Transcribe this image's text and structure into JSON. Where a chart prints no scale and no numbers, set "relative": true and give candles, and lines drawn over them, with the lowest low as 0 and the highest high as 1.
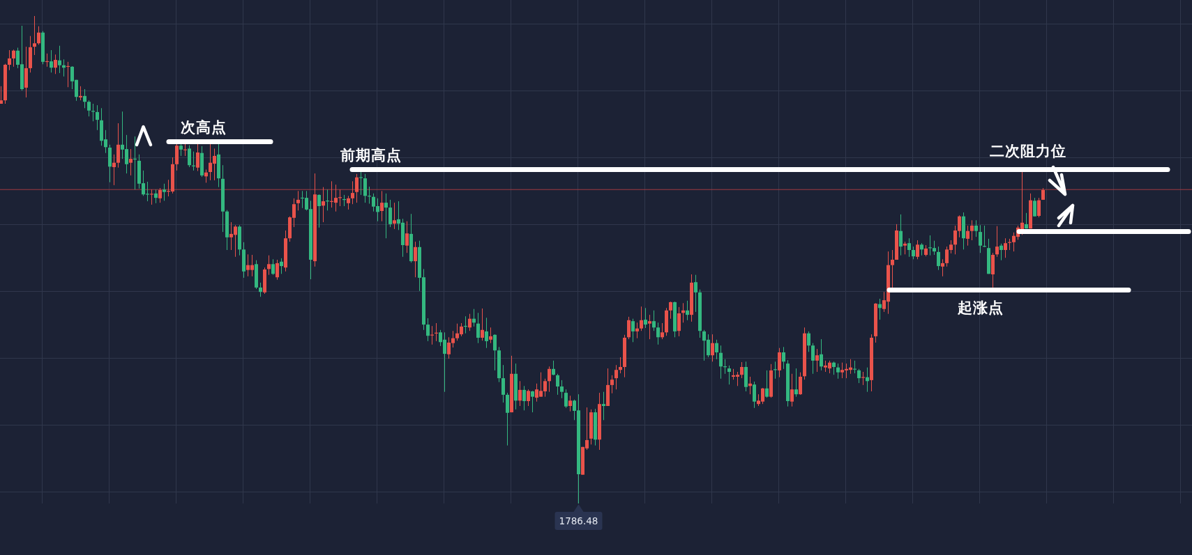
{
  "chart_data": {
    "type": "candlestick",
    "relative": true,
    "grid": true,
    "categories": [
      null,
      null,
      null,
      null,
      null,
      null,
      null,
      null,
      null,
      null,
      null,
      null,
      null,
      null,
      null,
      null,
      null,
      null,
      null,
      null,
      null,
      null,
      null,
      null,
      null,
      null,
      null,
      null,
      null,
      null,
      null,
      null,
      null,
      null,
      null,
      null,
      null,
      null,
      null,
      null,
      null,
      null,
      null,
      null,
      null,
      null,
      null,
      null,
      null,
      null,
      null,
      null,
      null,
      null,
      null,
      null,
      null,
      null,
      null,
      null,
      null,
      null,
      null,
      null,
      null,
      null,
      null,
      null,
      null,
      null,
      null,
      null,
      null,
      null,
      null,
      null,
      null,
      null,
      null,
      null,
      null,
      null,
      null,
      null,
      null,
      null,
      null,
      null,
      null,
      null,
      null,
      null,
      null,
      null,
      null,
      null,
      null,
      null,
      null,
      null,
      null,
      null,
      null,
      null,
      null,
      null,
      null,
      null,
      null,
      null,
      null,
      null,
      null,
      null,
      null,
      null,
      null,
      null,
      null,
      null,
      null,
      null,
      null,
      null,
      null,
      null,
      null,
      null,
      null,
      null,
      null,
      null,
      null,
      null,
      null,
      null,
      null,
      null,
      null,
      null,
      null,
      null,
      null,
      null,
      null,
      null,
      null,
      null,
      null,
      null,
      null,
      null,
      null,
      null,
      null,
      null,
      null,
      null,
      null,
      null,
      null,
      null,
      null,
      null,
      null,
      null,
      null,
      null,
      null,
      null,
      null,
      null,
      null,
      null,
      null,
      null,
      null,
      null,
      null,
      null,
      null,
      null,
      null,
      null,
      null,
      null,
      null,
      null,
      null,
      null,
      null,
      null,
      null,
      null,
      null,
      null,
      null,
      null,
      null,
      null,
      null,
      null,
      null,
      null,
      null,
      null,
      null,
      null,
      null,
      null,
      null,
      null,
      null,
      null,
      null,
      null,
      null,
      null,
      null,
      null,
      null,
      null,
      null,
      null,
      null,
      null,
      null,
      null,
      null,
      null,
      null,
      null,
      null,
      null,
      null,
      null,
      null,
      null,
      null,
      null,
      null,
      null,
      null,
      null,
      null,
      null,
      null,
      null,
      null,
      null,
      null,
      null,
      null,
      null,
      null,
      null,
      null,
      null,
      null,
      null,
      null,
      null,
      null,
      null,
      null,
      null,
      null,
      null,
      null,
      null,
      null,
      null,
      null,
      null,
      null,
      null,
      null,
      null,
      null,
      null,
      null,
      null,
      null,
      null,
      null
    ],
    "ohlc": [
      [
        0.82,
        0.856,
        0.82,
        0.827
      ],
      [
        0.827,
        0.902,
        0.82,
        0.9
      ],
      [
        0.9,
        0.93,
        0.889,
        0.913
      ],
      [
        0.913,
        0.931,
        0.896,
        0.929
      ],
      [
        0.929,
        0.935,
        0.893,
        0.9
      ],
      [
        0.901,
        0.98,
        0.847,
        0.85
      ],
      [
        0.853,
        0.937,
        0.833,
        0.893
      ],
      [
        0.893,
        0.959,
        0.884,
        0.936
      ],
      [
        0.937,
        1,
        0.92,
        0.944
      ],
      [
        0.944,
        0.979,
        0.941,
        0.966
      ],
      [
        0.966,
        0.969,
        0.901,
        0.906
      ],
      [
        0.906,
        0.923,
        0.896,
        0.907
      ],
      [
        0.907,
        0.93,
        0.884,
        0.894
      ],
      [
        0.894,
        0.921,
        0.881,
        0.91
      ],
      [
        0.909,
        0.939,
        0.883,
        0.899
      ],
      [
        0.899,
        0.911,
        0.876,
        0.894
      ],
      [
        0.896,
        0.906,
        0.854,
        0.897
      ],
      [
        0.896,
        0.897,
        0.85,
        0.866
      ],
      [
        0.869,
        0.869,
        0.826,
        0.834
      ],
      [
        0.833,
        0.856,
        0.827,
        0.836
      ],
      [
        0.836,
        0.85,
        0.811,
        0.824
      ],
      [
        0.824,
        0.827,
        0.794,
        0.806
      ],
      [
        0.805,
        0.82,
        0.784,
        0.804
      ],
      [
        0.803,
        0.817,
        0.766,
        0.787
      ],
      [
        0.786,
        0.811,
        0.734,
        0.744
      ],
      [
        0.747,
        0.766,
        0.719,
        0.731
      ],
      [
        0.73,
        0.736,
        0.659,
        0.691
      ],
      [
        0.69,
        0.716,
        0.653,
        0.699
      ],
      [
        0.699,
        0.78,
        0.689,
        0.736
      ],
      [
        0.736,
        0.804,
        0.707,
        0.726
      ],
      [
        0.727,
        0.756,
        0.677,
        0.696
      ],
      [
        0.699,
        0.727,
        0.673,
        0.707
      ],
      [
        0.707,
        0.753,
        0.644,
        0.706
      ],
      [
        0.703,
        0.716,
        0.646,
        0.656
      ],
      [
        0.657,
        0.683,
        0.631,
        0.634
      ],
      [
        0.635,
        0.66,
        0.62,
        0.634
      ],
      [
        0.634,
        0.644,
        0.613,
        0.635
      ],
      [
        0.636,
        0.644,
        0.616,
        0.627
      ],
      [
        0.626,
        0.647,
        0.617,
        0.643
      ],
      [
        0.644,
        0.656,
        0.621,
        0.639
      ],
      [
        0.64,
        0.664,
        0.63,
        0.641
      ],
      [
        0.64,
        0.71,
        0.636,
        0.696
      ],
      [
        0.696,
        0.741,
        0.683,
        0.734
      ],
      [
        0.734,
        0.74,
        0.713,
        0.726
      ],
      [
        0.725,
        0.738,
        0.713,
        0.726
      ],
      [
        0.728,
        0.735,
        0.69,
        0.694
      ],
      [
        0.693,
        0.722,
        0.683,
        0.692
      ],
      [
        0.689,
        0.738,
        0.682,
        0.72
      ],
      [
        0.719,
        0.733,
        0.67,
        0.673
      ],
      [
        0.671,
        0.685,
        0.658,
        0.679
      ],
      [
        0.68,
        0.738,
        0.663,
        0.699
      ],
      [
        0.697,
        0.728,
        0.663,
        0.713
      ],
      [
        0.716,
        0.738,
        0.649,
        0.667
      ],
      [
        0.666,
        0.694,
        0.557,
        0.599
      ],
      [
        0.599,
        0.602,
        0.52,
        0.546
      ],
      [
        0.546,
        0.577,
        0.52,
        0.553
      ],
      [
        0.551,
        0.571,
        0.506,
        0.568
      ],
      [
        0.568,
        0.571,
        0.509,
        0.521
      ],
      [
        0.521,
        0.536,
        0.463,
        0.476
      ],
      [
        0.479,
        0.511,
        0.466,
        0.489
      ],
      [
        0.479,
        0.51,
        0.466,
        0.489
      ],
      [
        0.491,
        0.499,
        0.44,
        0.443
      ],
      [
        0.443,
        0.453,
        0.424,
        0.434
      ],
      [
        0.433,
        0.484,
        0.43,
        0.48
      ],
      [
        0.481,
        0.509,
        0.469,
        0.491
      ],
      [
        0.491,
        0.501,
        0.469,
        0.471
      ],
      [
        0.464,
        0.5,
        0.459,
        0.493
      ],
      [
        0.496,
        0.503,
        0.471,
        0.487
      ],
      [
        0.484,
        0.56,
        0.476,
        0.544
      ],
      [
        0.544,
        0.589,
        0.537,
        0.587
      ],
      [
        0.586,
        0.626,
        0.567,
        0.614
      ],
      [
        0.616,
        0.641,
        0.601,
        0.623
      ],
      [
        0.627,
        0.641,
        0.606,
        0.626
      ],
      [
        0.627,
        0.641,
        0.601,
        0.603
      ],
      [
        0.604,
        0.621,
        0.46,
        0.5
      ],
      [
        0.497,
        0.677,
        0.486,
        0.634
      ],
      [
        0.633,
        0.634,
        0.566,
        0.61
      ],
      [
        0.611,
        0.649,
        0.577,
        0.62
      ],
      [
        0.621,
        0.644,
        0.601,
        0.62
      ],
      [
        0.619,
        0.661,
        0.607,
        0.62
      ],
      [
        0.617,
        0.654,
        0.599,
        0.627
      ],
      [
        0.627,
        0.644,
        0.61,
        0.628
      ],
      [
        0.624,
        0.633,
        0.61,
        0.623
      ],
      [
        0.616,
        0.631,
        0.603,
        0.626
      ],
      [
        0.626,
        0.661,
        0.614,
        0.637
      ],
      [
        0.639,
        0.676,
        0.617,
        0.669
      ],
      [
        0.669,
        0.68,
        0.633,
        0.668
      ],
      [
        0.667,
        0.676,
        0.617,
        0.631
      ],
      [
        0.631,
        0.65,
        0.615,
        0.63
      ],
      [
        0.629,
        0.636,
        0.599,
        0.609
      ],
      [
        0.61,
        0.626,
        0.579,
        0.598
      ],
      [
        0.6,
        0.641,
        0.579,
        0.617
      ],
      [
        0.617,
        0.636,
        0.544,
        0.607
      ],
      [
        0.607,
        0.623,
        0.567,
        0.573
      ],
      [
        0.574,
        0.617,
        0.563,
        0.581
      ],
      [
        0.583,
        0.62,
        0.561,
        0.574
      ],
      [
        0.576,
        0.584,
        0.506,
        0.53
      ],
      [
        0.529,
        0.579,
        0.514,
        0.554
      ],
      [
        0.553,
        0.594,
        0.494,
        0.497
      ],
      [
        0.497,
        0.537,
        0.464,
        0.526
      ],
      [
        0.526,
        0.539,
        0.436,
        0.463
      ],
      [
        0.464,
        0.481,
        0.356,
        0.367
      ],
      [
        0.367,
        0.38,
        0.333,
        0.344
      ],
      [
        0.345,
        0.364,
        0.326,
        0.346
      ],
      [
        0.349,
        0.37,
        0.333,
        0.35
      ],
      [
        0.351,
        0.356,
        0.323,
        0.331
      ],
      [
        0.336,
        0.351,
        0.229,
        0.307
      ],
      [
        0.306,
        0.341,
        0.297,
        0.33
      ],
      [
        0.329,
        0.354,
        0.32,
        0.339
      ],
      [
        0.339,
        0.369,
        0.334,
        0.349
      ],
      [
        0.347,
        0.37,
        0.343,
        0.363
      ],
      [
        0.364,
        0.384,
        0.349,
        0.363
      ],
      [
        0.361,
        0.389,
        0.354,
        0.379
      ],
      [
        0.379,
        0.399,
        0.363,
        0.371
      ],
      [
        0.369,
        0.391,
        0.329,
        0.34
      ],
      [
        0.34,
        0.4,
        0.334,
        0.356
      ],
      [
        0.353,
        0.381,
        0.319,
        0.333
      ],
      [
        0.336,
        0.361,
        0.329,
        0.343
      ],
      [
        0.346,
        0.347,
        0.273,
        0.314
      ],
      [
        0.314,
        0.321,
        0.249,
        0.257
      ],
      [
        0.257,
        0.284,
        0.207,
        0.223
      ],
      [
        0.223,
        0.227,
        0.119,
        0.186
      ],
      [
        0.187,
        0.303,
        0.187,
        0.266
      ],
      [
        0.266,
        0.287,
        0.193,
        0.211
      ],
      [
        0.211,
        0.251,
        0.2,
        0.233
      ],
      [
        0.233,
        0.241,
        0.191,
        0.21
      ],
      [
        0.21,
        0.234,
        0.2,
        0.231
      ],
      [
        0.23,
        0.231,
        0.187,
        0.219
      ],
      [
        0.217,
        0.246,
        0.209,
        0.234
      ],
      [
        0.219,
        0.269,
        0.219,
        0.231
      ],
      [
        0.23,
        0.256,
        0.219,
        0.251
      ],
      [
        0.251,
        0.281,
        0.229,
        0.276
      ],
      [
        0.276,
        0.293,
        0.263,
        0.264
      ],
      [
        0.263,
        0.266,
        0.223,
        0.24
      ],
      [
        0.24,
        0.253,
        0.216,
        0.229
      ],
      [
        0.227,
        0.234,
        0.196,
        0.199
      ],
      [
        0.2,
        0.221,
        0.189,
        0.211
      ],
      [
        0.211,
        0.213,
        0.171,
        0.19
      ],
      [
        0.191,
        0.224,
        0,
        0.06
      ],
      [
        0.059,
        0.116,
        0.059,
        0.116
      ],
      [
        0.113,
        0.197,
        0.11,
        0.13
      ],
      [
        0.133,
        0.193,
        0.121,
        0.187
      ],
      [
        0.187,
        0.194,
        0.119,
        0.131
      ],
      [
        0.131,
        0.227,
        0.11,
        0.204
      ],
      [
        0.204,
        0.229,
        0.171,
        0.2
      ],
      [
        0.2,
        0.277,
        0.2,
        0.243
      ],
      [
        0.243,
        0.263,
        0.226,
        0.254
      ],
      [
        0.257,
        0.284,
        0.234,
        0.274
      ],
      [
        0.274,
        0.3,
        0.267,
        0.28
      ],
      [
        0.28,
        0.346,
        0.259,
        0.34
      ],
      [
        0.341,
        0.383,
        0.337,
        0.376
      ],
      [
        0.374,
        0.379,
        0.331,
        0.353
      ],
      [
        0.353,
        0.371,
        0.339,
        0.359
      ],
      [
        0.359,
        0.404,
        0.354,
        0.376
      ],
      [
        0.377,
        0.401,
        0.36,
        0.367
      ],
      [
        0.369,
        0.387,
        0.337,
        0.374
      ],
      [
        0.374,
        0.396,
        0.354,
        0.361
      ],
      [
        0.361,
        0.371,
        0.326,
        0.341
      ],
      [
        0.341,
        0.37,
        0.337,
        0.351
      ],
      [
        0.351,
        0.401,
        0.344,
        0.396
      ],
      [
        0.396,
        0.414,
        0.379,
        0.413
      ],
      [
        0.413,
        0.414,
        0.341,
        0.353
      ],
      [
        0.354,
        0.403,
        0.343,
        0.39
      ],
      [
        0.391,
        0.411,
        0.371,
        0.396
      ],
      [
        0.396,
        0.416,
        0.376,
        0.387
      ],
      [
        0.387,
        0.47,
        0.373,
        0.453
      ],
      [
        0.454,
        0.469,
        0.393,
        0.433
      ],
      [
        0.433,
        0.439,
        0.34,
        0.354
      ],
      [
        0.353,
        0.356,
        0.293,
        0.334
      ],
      [
        0.336,
        0.347,
        0.3,
        0.304
      ],
      [
        0.304,
        0.347,
        0.291,
        0.329
      ],
      [
        0.329,
        0.336,
        0.296,
        0.31
      ],
      [
        0.309,
        0.324,
        0.256,
        0.281
      ],
      [
        0.281,
        0.296,
        0.266,
        0.28
      ],
      [
        0.277,
        0.283,
        0.244,
        0.27
      ],
      [
        0.26,
        0.276,
        0.254,
        0.263
      ],
      [
        0.26,
        0.27,
        0.241,
        0.264
      ],
      [
        0.264,
        0.29,
        0.257,
        0.28
      ],
      [
        0.28,
        0.291,
        0.23,
        0.239
      ],
      [
        0.241,
        0.26,
        0.224,
        0.246
      ],
      [
        0.244,
        0.25,
        0.196,
        0.209
      ],
      [
        0.204,
        0.224,
        0.2,
        0.211
      ],
      [
        0.209,
        0.237,
        0.204,
        0.236
      ],
      [
        0.236,
        0.273,
        0.217,
        0.219
      ],
      [
        0.219,
        0.286,
        0.217,
        0.273
      ],
      [
        0.275,
        0.291,
        0.256,
        0.274
      ],
      [
        0.273,
        0.319,
        0.259,
        0.31
      ],
      [
        0.31,
        0.321,
        0.276,
        0.291
      ],
      [
        0.287,
        0.294,
        0.199,
        0.21
      ],
      [
        0.209,
        0.266,
        0.199,
        0.234
      ],
      [
        0.234,
        0.277,
        0.219,
        0.224
      ],
      [
        0.224,
        0.269,
        0.223,
        0.26
      ],
      [
        0.261,
        0.361,
        0.254,
        0.349
      ],
      [
        0.349,
        0.353,
        0.311,
        0.324
      ],
      [
        0.324,
        0.329,
        0.266,
        0.293
      ],
      [
        0.293,
        0.317,
        0.27,
        0.304
      ],
      [
        0.306,
        0.337,
        0.273,
        0.281
      ],
      [
        0.279,
        0.293,
        0.27,
        0.283
      ],
      [
        0.277,
        0.293,
        0.267,
        0.289
      ],
      [
        0.289,
        0.291,
        0.264,
        0.28
      ],
      [
        0.279,
        0.287,
        0.256,
        0.269
      ],
      [
        0.269,
        0.289,
        0.257,
        0.274
      ],
      [
        0.273,
        0.287,
        0.257,
        0.276
      ],
      [
        0.274,
        0.296,
        0.266,
        0.279
      ],
      [
        0.276,
        0.293,
        0.267,
        0.275
      ],
      [
        0.273,
        0.276,
        0.247,
        0.257
      ],
      [
        0.258,
        0.27,
        0.243,
        0.259
      ],
      [
        0.259,
        0.279,
        0.229,
        0.251
      ],
      [
        0.253,
        0.347,
        0.23,
        0.34
      ],
      [
        0.343,
        0.411,
        0.33,
        0.41
      ],
      [
        0.409,
        0.42,
        0.377,
        0.401
      ],
      [
        0.399,
        0.434,
        0.393,
        0.417
      ],
      [
        0.414,
        0.517,
        0.389,
        0.489
      ],
      [
        0.489,
        0.52,
        0.441,
        0.5
      ],
      [
        0.5,
        0.573,
        0.5,
        0.56
      ],
      [
        0.559,
        0.593,
        0.509,
        0.527
      ],
      [
        0.529,
        0.537,
        0.511,
        0.533
      ],
      [
        0.534,
        0.544,
        0.506,
        0.52
      ],
      [
        0.52,
        0.527,
        0.501,
        0.507
      ],
      [
        0.506,
        0.54,
        0.501,
        0.531
      ],
      [
        0.531,
        0.534,
        0.509,
        0.521
      ],
      [
        0.51,
        0.53,
        0.507,
        0.523
      ],
      [
        0.525,
        0.55,
        0.509,
        0.524
      ],
      [
        0.524,
        0.539,
        0.51,
        0.517
      ],
      [
        0.516,
        0.527,
        0.479,
        0.487
      ],
      [
        0.486,
        0.501,
        0.466,
        0.493
      ],
      [
        0.493,
        0.527,
        0.486,
        0.521
      ],
      [
        0.52,
        0.54,
        0.513,
        0.531
      ],
      [
        0.531,
        0.57,
        0.511,
        0.56
      ],
      [
        0.559,
        0.591,
        0.546,
        0.589
      ],
      [
        0.589,
        0.597,
        0.521,
        0.544
      ],
      [
        0.543,
        0.57,
        0.529,
        0.559
      ],
      [
        0.559,
        0.581,
        0.54,
        0.57
      ],
      [
        0.57,
        0.581,
        0.547,
        0.559
      ],
      [
        0.557,
        0.571,
        0.514,
        0.529
      ],
      [
        0.528,
        0.57,
        0.526,
        0.527
      ],
      [
        0.524,
        0.543,
        0.471,
        0.471
      ],
      [
        0.47,
        0.514,
        0.443,
        0.51
      ],
      [
        0.511,
        0.569,
        0.506,
        0.527
      ],
      [
        0.529,
        0.533,
        0.499,
        0.52
      ],
      [
        0.52,
        0.544,
        0.504,
        0.534
      ],
      [
        0.535,
        0.543,
        0.52,
        0.536
      ],
      [
        0.536,
        0.556,
        0.517,
        0.549
      ],
      [
        0.547,
        0.57,
        0.541,
        0.566
      ],
      [
        0.56,
        0.68,
        0.551,
        0.576
      ],
      [
        0.573,
        0.596,
        0.564,
        0.564
      ],
      [
        0.564,
        0.636,
        0.564,
        0.622
      ],
      [
        0.621,
        0.627,
        0.589,
        0.589
      ],
      [
        0.59,
        0.627,
        0.587,
        0.622
      ],
      [
        0.623,
        0.647,
        0.623,
        0.643
      ],
      null,
      null,
      null,
      null,
      null,
      null,
      null,
      null,
      null,
      null,
      null,
      null,
      null,
      null,
      null,
      null,
      null,
      null,
      null,
      null,
      null,
      null,
      null,
      null,
      null,
      null,
      null,
      null,
      null,
      null,
      null,
      null,
      null,
      null,
      null
    ],
    "colors": [
      "#e9534b",
      "#e9534b",
      "#e9534b",
      "#e9534b",
      "#34b880",
      "#34b880",
      "#e9534b",
      "#e9534b",
      "#e9534b",
      "#e9534b",
      "#34b880",
      "#e9534b",
      "#34b880",
      "#e9534b",
      "#34b880",
      "#34b880",
      "#e9534b",
      "#34b880",
      "#34b880",
      "#e9534b",
      "#34b880",
      "#34b880",
      "#34b880",
      "#34b880",
      "#34b880",
      "#34b880",
      "#34b880",
      "#e9534b",
      "#e9534b",
      "#34b880",
      "#34b880",
      "#e9534b",
      "#34b880",
      "#34b880",
      "#34b880",
      "#34b880",
      "#e9534b",
      "#34b880",
      "#e9534b",
      "#34b880",
      "#e9534b",
      "#e9534b",
      "#e9534b",
      "#34b880",
      "#e9534b",
      "#34b880",
      "#34b880",
      "#e9534b",
      "#34b880",
      "#e9534b",
      "#e9534b",
      "#e9534b",
      "#34b880",
      "#34b880",
      "#34b880",
      "#e9534b",
      "#e9534b",
      "#34b880",
      "#34b880",
      "#e9534b",
      "#e9534b",
      "#34b880",
      "#34b880",
      "#e9534b",
      "#e9534b",
      "#34b880",
      "#e9534b",
      "#34b880",
      "#e9534b",
      "#e9534b",
      "#e9534b",
      "#e9534b",
      "#34b880",
      "#34b880",
      "#34b880",
      "#e9534b",
      "#34b880",
      "#e9534b",
      "#34b880",
      "#e9534b",
      "#e9534b",
      "#e9534b",
      "#34b880",
      "#e9534b",
      "#e9534b",
      "#e9534b",
      "#34b880",
      "#34b880",
      "#34b880",
      "#34b880",
      "#34b880",
      "#e9534b",
      "#34b880",
      "#34b880",
      "#e9534b",
      "#34b880",
      "#34b880",
      "#e9534b",
      "#34b880",
      "#e9534b",
      "#34b880",
      "#34b880",
      "#34b880",
      "#e9534b",
      "#e9534b",
      "#34b880",
      "#34b880",
      "#e9534b",
      "#e9534b",
      "#e9534b",
      "#e9534b",
      "#34b880",
      "#e9534b",
      "#34b880",
      "#34b880",
      "#e9534b",
      "#34b880",
      "#e9534b",
      "#34b880",
      "#34b880",
      "#34b880",
      "#34b880",
      "#e9534b",
      "#34b880",
      "#e9534b",
      "#34b880",
      "#e9534b",
      "#34b880",
      "#e9534b",
      "#e9534b",
      "#e9534b",
      "#e9534b",
      "#34b880",
      "#34b880",
      "#34b880",
      "#34b880",
      "#e9534b",
      "#34b880",
      "#34b880",
      "#e9534b",
      "#e9534b",
      "#e9534b",
      "#34b880",
      "#e9534b",
      "#34b880",
      "#e9534b",
      "#e9534b",
      "#e9534b",
      "#e9534b",
      "#e9534b",
      "#e9534b",
      "#34b880",
      "#e9534b",
      "#e9534b",
      "#34b880",
      "#e9534b",
      "#34b880",
      "#34b880",
      "#e9534b",
      "#e9534b",
      "#e9534b",
      "#34b880",
      "#e9534b",
      "#e9534b",
      "#34b880",
      "#e9534b",
      "#34b880",
      "#34b880",
      "#34b880",
      "#34b880",
      "#e9534b",
      "#34b880",
      "#34b880",
      "#34b880",
      "#34b880",
      "#e9534b",
      "#e9534b",
      "#e9534b",
      "#34b880",
      "#e9534b",
      "#34b880",
      "#e9534b",
      "#e9534b",
      "#34b880",
      "#e9534b",
      "#34b880",
      "#e9534b",
      "#34b880",
      "#34b880",
      "#e9534b",
      "#34b880",
      "#e9534b",
      "#e9534b",
      "#34b880",
      "#34b880",
      "#e9534b",
      "#34b880",
      "#e9534b",
      "#e9534b",
      "#34b880",
      "#34b880",
      "#e9534b",
      "#e9534b",
      "#e9534b",
      "#34b880",
      "#34b880",
      "#e9534b",
      "#34b880",
      "#e9534b",
      "#e9534b",
      "#34b880",
      "#e9534b",
      "#e9534b",
      "#e9534b",
      "#e9534b",
      "#34b880",
      "#e9534b",
      "#34b880",
      "#34b880",
      "#e9534b",
      "#34b880",
      "#e9534b",
      "#34b880",
      "#34b880",
      "#34b880",
      "#e9534b",
      "#e9534b",
      "#e9534b",
      "#e9534b",
      "#e9534b",
      "#34b880",
      "#e9534b",
      "#e9534b",
      "#34b880",
      "#34b880",
      "#34b880",
      "#34b880",
      "#e9534b",
      "#e9534b",
      "#34b880",
      "#e9534b",
      "#e9534b",
      "#e9534b",
      "#e9534b",
      "#e9534b",
      "#34b880",
      "#e9534b",
      "#34b880",
      "#e9534b",
      "#e9534b",
      null,
      null,
      null,
      null,
      null,
      null,
      null,
      null,
      null,
      null,
      null,
      null,
      null,
      null,
      null,
      null,
      null,
      null,
      null,
      null,
      null,
      null,
      null,
      null,
      null,
      null,
      null,
      null,
      null,
      null,
      null,
      null,
      null,
      null,
      null
    ],
    "ref_lines": [
      {
        "axis": "y",
        "value": 0.742,
        "label": "次高点",
        "color": "#ffffff"
      },
      {
        "axis": "y",
        "value": 0.685,
        "label": "前期高点",
        "color": "#ffffff"
      },
      {
        "axis": "y",
        "value": 0.558,
        "color": "#ffffff"
      },
      {
        "axis": "y",
        "value": 0.438,
        "label": "起涨点",
        "color": "#ffffff"
      },
      {
        "axis": "y",
        "value": 0.644,
        "color": "#a33c40"
      }
    ],
    "annotations": [
      "二次阻力位",
      "1786.48"
    ]
  }
}
